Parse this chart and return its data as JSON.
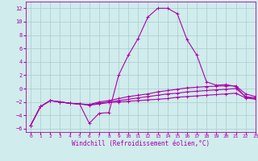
{
  "x": [
    0,
    1,
    2,
    3,
    4,
    5,
    6,
    7,
    8,
    9,
    10,
    11,
    12,
    13,
    14,
    15,
    16,
    17,
    18,
    19,
    20,
    21,
    22,
    23
  ],
  "line1": [
    -5.5,
    -2.7,
    -1.8,
    -2.0,
    -2.2,
    -2.3,
    -5.2,
    -3.7,
    -3.6,
    2.0,
    5.0,
    7.5,
    10.7,
    12.0,
    12.0,
    11.2,
    7.3,
    5.0,
    1.0,
    0.5,
    0.6,
    0.3,
    -1.3,
    -1.5
  ],
  "line2": [
    -5.5,
    -2.7,
    -1.8,
    -2.0,
    -2.2,
    -2.3,
    -2.4,
    -2.0,
    -1.8,
    -1.5,
    -1.2,
    -1.0,
    -0.8,
    -0.5,
    -0.3,
    -0.1,
    0.1,
    0.2,
    0.3,
    0.35,
    0.4,
    0.4,
    -0.8,
    -1.2
  ],
  "line3": [
    -5.5,
    -2.7,
    -1.8,
    -2.0,
    -2.2,
    -2.3,
    -2.4,
    -2.2,
    -2.0,
    -1.8,
    -1.6,
    -1.4,
    -1.2,
    -1.0,
    -0.8,
    -0.7,
    -0.5,
    -0.4,
    -0.3,
    -0.2,
    -0.1,
    0.0,
    -1.2,
    -1.4
  ],
  "line4": [
    -5.5,
    -2.7,
    -1.8,
    -2.0,
    -2.2,
    -2.3,
    -2.5,
    -2.3,
    -2.1,
    -2.0,
    -1.9,
    -1.8,
    -1.7,
    -1.6,
    -1.5,
    -1.3,
    -1.2,
    -1.1,
    -1.0,
    -0.9,
    -0.8,
    -0.7,
    -1.4,
    -1.6
  ],
  "bg_color": "#d0ecec",
  "line_color": "#aa00aa",
  "grid_color": "#aacccc",
  "xlabel": "Windchill (Refroidissement éolien,°C)",
  "xlim": [
    -0.5,
    23
  ],
  "ylim": [
    -6.5,
    13
  ],
  "yticks": [
    -6,
    -4,
    -2,
    0,
    2,
    4,
    6,
    8,
    10,
    12
  ],
  "xticks": [
    0,
    1,
    2,
    3,
    4,
    5,
    6,
    7,
    8,
    9,
    10,
    11,
    12,
    13,
    14,
    15,
    16,
    17,
    18,
    19,
    20,
    21,
    22,
    23
  ],
  "marker": "+",
  "markersize": 3,
  "linewidth": 0.8
}
